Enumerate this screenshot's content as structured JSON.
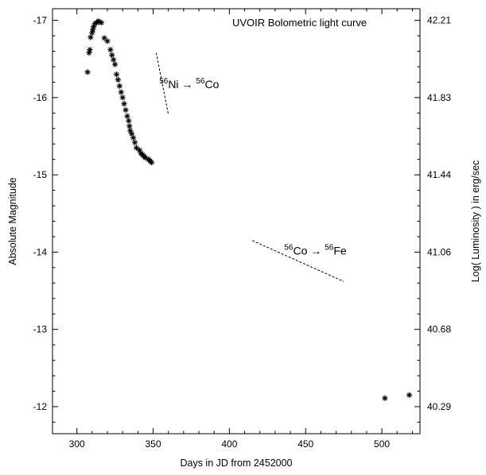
{
  "chart_data": {
    "type": "scatter",
    "title": "UVOIR Bolometric light curve",
    "xlabel": "Days in JD from 2452000",
    "ylabel": "Absolute Magnitude",
    "y2label": "Log( Luminosity ) in erg/sec",
    "xlim": [
      284,
      525
    ],
    "ylim": [
      -11.65,
      -17.15
    ],
    "x_ticks": [
      300,
      350,
      400,
      450,
      500
    ],
    "y_ticks": [
      -17,
      -16,
      -15,
      -14,
      -13,
      -12
    ],
    "y2_ticks": [
      {
        "y": -17,
        "label": "42.21"
      },
      {
        "y": -16,
        "label": "41.83"
      },
      {
        "y": -15,
        "label": "41.44"
      },
      {
        "y": -14,
        "label": "41.06"
      },
      {
        "y": -13,
        "label": "40.68"
      },
      {
        "y": -12,
        "label": "40.29"
      }
    ],
    "grid": false,
    "marker": "asterisk",
    "points": [
      {
        "x": 307,
        "y": -16.33
      },
      {
        "x": 308,
        "y": -16.58
      },
      {
        "x": 308.5,
        "y": -16.62
      },
      {
        "x": 309,
        "y": -16.78
      },
      {
        "x": 310,
        "y": -16.84
      },
      {
        "x": 310.5,
        "y": -16.88
      },
      {
        "x": 311,
        "y": -16.92
      },
      {
        "x": 312,
        "y": -16.96
      },
      {
        "x": 313,
        "y": -16.97
      },
      {
        "x": 314,
        "y": -16.99
      },
      {
        "x": 315,
        "y": -16.98
      },
      {
        "x": 316,
        "y": -16.97
      },
      {
        "x": 318,
        "y": -16.77
      },
      {
        "x": 320,
        "y": -16.73
      },
      {
        "x": 322,
        "y": -16.62
      },
      {
        "x": 323,
        "y": -16.55
      },
      {
        "x": 324,
        "y": -16.49
      },
      {
        "x": 325,
        "y": -16.43
      },
      {
        "x": 326,
        "y": -16.3
      },
      {
        "x": 327,
        "y": -16.23
      },
      {
        "x": 328,
        "y": -16.15
      },
      {
        "x": 329,
        "y": -16.07
      },
      {
        "x": 330,
        "y": -16.0
      },
      {
        "x": 331,
        "y": -15.92
      },
      {
        "x": 332,
        "y": -15.84
      },
      {
        "x": 333,
        "y": -15.76
      },
      {
        "x": 334,
        "y": -15.7
      },
      {
        "x": 334.5,
        "y": -15.63
      },
      {
        "x": 335,
        "y": -15.57
      },
      {
        "x": 336,
        "y": -15.53
      },
      {
        "x": 337,
        "y": -15.48
      },
      {
        "x": 338,
        "y": -15.42
      },
      {
        "x": 339,
        "y": -15.35
      },
      {
        "x": 341,
        "y": -15.32
      },
      {
        "x": 342,
        "y": -15.28
      },
      {
        "x": 343,
        "y": -15.26
      },
      {
        "x": 344,
        "y": -15.24
      },
      {
        "x": 345,
        "y": -15.22
      },
      {
        "x": 347,
        "y": -15.2
      },
      {
        "x": 348,
        "y": -15.18
      },
      {
        "x": 349,
        "y": -15.16
      },
      {
        "x": 502,
        "y": -12.11
      },
      {
        "x": 518,
        "y": -12.15
      }
    ],
    "decay_lines": [
      {
        "id": "ni-co",
        "x": [
          352,
          360
        ],
        "y": [
          -16.58,
          -15.78
        ],
        "parent_sup": "56",
        "parent": "Ni",
        "arrow": "→",
        "daughter_sup": "56",
        "daughter": "Co",
        "label_x": 354,
        "label_y": -16.12
      },
      {
        "id": "co-fe",
        "x": [
          415,
          475
        ],
        "y": [
          -14.15,
          -13.62
        ],
        "parent_sup": "56",
        "parent": "Co",
        "arrow": "→",
        "daughter_sup": "56",
        "daughter": "Fe",
        "label_x": 436,
        "label_y": -13.97
      }
    ]
  }
}
